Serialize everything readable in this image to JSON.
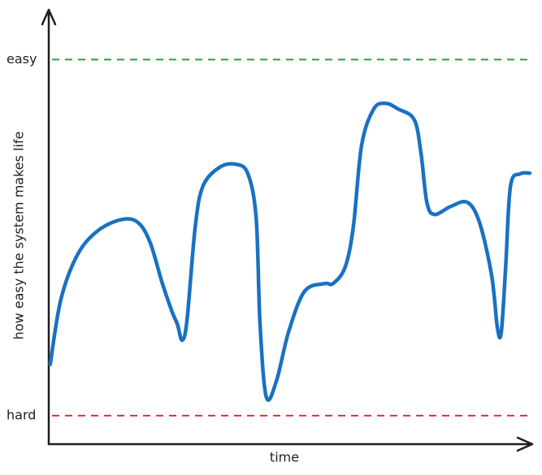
{
  "chart_data": {
    "type": "line",
    "x_label": "time",
    "y_label": "how easy the system makes life",
    "xlim": [
      0,
      100
    ],
    "ylim": [
      -8,
      114
    ],
    "reference_lines": [
      {
        "label": "easy",
        "value": 100,
        "color": "#2f9e44"
      },
      {
        "label": "hard",
        "value": 0,
        "color": "#e03131"
      }
    ],
    "series": [
      {
        "color": "#1971c2",
        "x": [
          0.3,
          2.5,
          5.9,
          10.1,
          15.1,
          18.5,
          21.0,
          23.5,
          25.5,
          26.6,
          27.6,
          28.6,
          30.3,
          31.9,
          35.3,
          38.7,
          41.2,
          42.9,
          43.7,
          45.0,
          47.1,
          49.6,
          52.9,
          57.1,
          58.8,
          61.3,
          63.0,
          64.7,
          67.2,
          69.7,
          72.3,
          75.6,
          77.0,
          78.2,
          79.8,
          83.2,
          86.6,
          89.1,
          91.6,
          92.8,
          93.6,
          94.5,
          95.5,
          97.5,
          99.5
        ],
        "values": [
          14.4,
          32.6,
          45.1,
          51.9,
          55.1,
          54.2,
          48.5,
          37.1,
          29.2,
          25.7,
          21.2,
          26.9,
          53.1,
          64.5,
          69.7,
          70.6,
          67.9,
          55.4,
          25.7,
          5.2,
          9.8,
          23.5,
          34.9,
          37.1,
          37.1,
          41.7,
          53.1,
          75.9,
          86.1,
          87.7,
          86.1,
          83.1,
          73.6,
          59.9,
          56.5,
          58.8,
          59.9,
          54.2,
          39.4,
          24.6,
          23.5,
          41.7,
          64.5,
          67.9,
          68.1
        ]
      }
    ]
  }
}
